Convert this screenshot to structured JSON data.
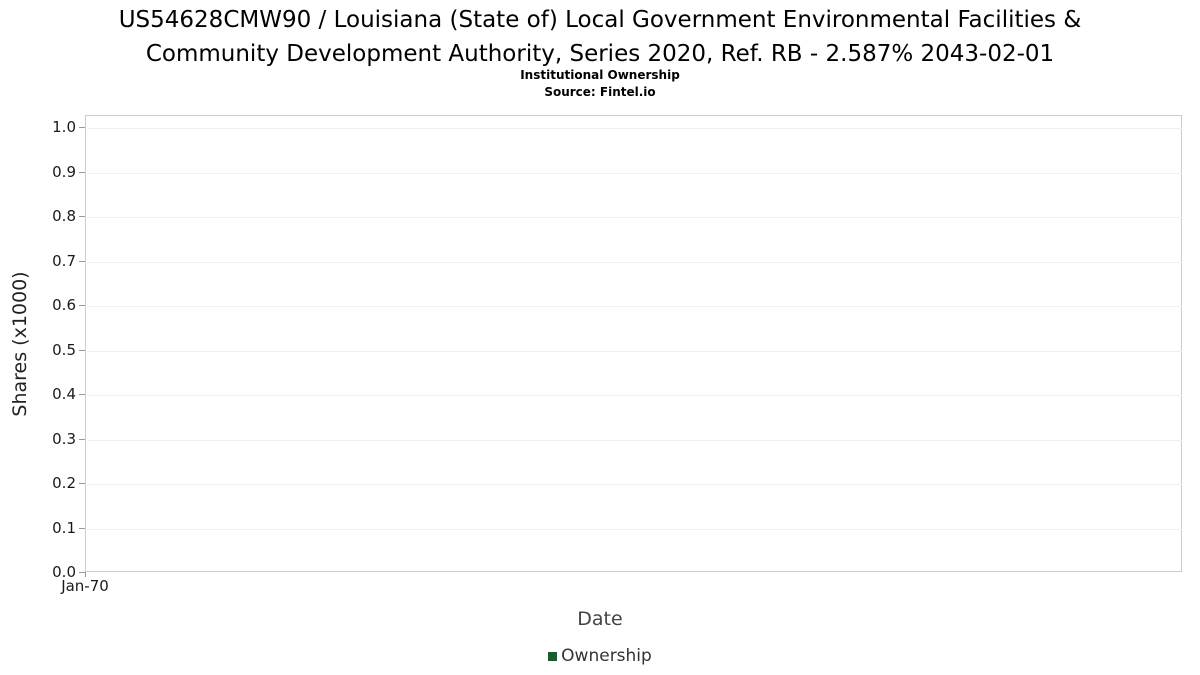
{
  "title": {
    "line1": "US54628CMW90 / Louisiana (State of) Local Government Environmental Facilities &",
    "line2": "Community Development Authority, Series 2020, Ref. RB - 2.587% 2043-02-01"
  },
  "subtitle": "Institutional Ownership",
  "source": "Source: Fintel.io",
  "chart_data": {
    "type": "line",
    "title": "US54628CMW90 / Louisiana (State of) Local Government Environmental Facilities & Community Development Authority, Series 2020, Ref. RB - 2.587% 2043-02-01",
    "subtitle": "Institutional Ownership",
    "source": "Source: Fintel.io",
    "xlabel": "Date",
    "ylabel": "Shares (x1000)",
    "ylim": [
      0.0,
      1.0
    ],
    "yticks": [
      "1.0",
      "0.9",
      "0.8",
      "0.7",
      "0.6",
      "0.5",
      "0.4",
      "0.3",
      "0.2",
      "0.1",
      "0.0"
    ],
    "xticks": [
      {
        "label": "Jan-70",
        "pos": 0
      }
    ],
    "grid": true,
    "legend_position": "bottom",
    "series": [
      {
        "name": "Ownership",
        "color": "#1a5c32",
        "x": [],
        "values": []
      }
    ]
  }
}
